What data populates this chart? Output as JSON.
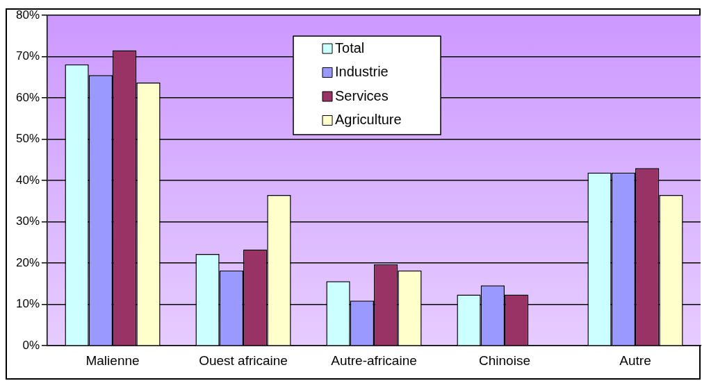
{
  "chart_data": {
    "type": "bar",
    "categories": [
      "Malienne",
      "Ouest africaine",
      "Autre-africaine",
      "Chinoise",
      "Autre"
    ],
    "series": [
      {
        "name": "Total",
        "color": "#ccffff",
        "values": [
          68.1,
          22.2,
          15.6,
          12.4,
          41.9
        ]
      },
      {
        "name": "Industrie",
        "color": "#9999ff",
        "values": [
          65.5,
          18.2,
          10.9,
          14.6,
          41.9
        ]
      },
      {
        "name": "Services",
        "color": "#993366",
        "values": [
          71.5,
          23.3,
          19.7,
          12.4,
          43.0
        ]
      },
      {
        "name": "Agriculture",
        "color": "#ffffcc",
        "values": [
          63.7,
          36.5,
          18.2,
          null,
          36.5
        ]
      }
    ],
    "ylim": [
      0,
      80
    ],
    "yticks": [
      {
        "value": 0,
        "label": "0%"
      },
      {
        "value": 10,
        "label": "10%"
      },
      {
        "value": 20,
        "label": "20%"
      },
      {
        "value": 30,
        "label": "30%"
      },
      {
        "value": 40,
        "label": "40%"
      },
      {
        "value": 50,
        "label": "50%"
      },
      {
        "value": 60,
        "label": "60%"
      },
      {
        "value": 70,
        "label": "70%"
      },
      {
        "value": 80,
        "label": "80%"
      }
    ],
    "grid": "y",
    "legend": "top"
  }
}
